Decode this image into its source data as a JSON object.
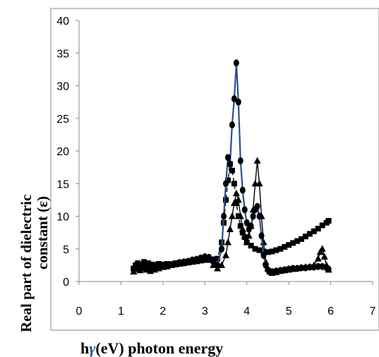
{
  "chart_data": {
    "type": "scatter",
    "title": "",
    "xlabel_prefix": "h",
    "xlabel_symbol": "γ",
    "xlabel_suffix": "(eV) photon energy",
    "ylabel_line1": "Real    part   of dielectric",
    "ylabel_line2": "constant (ε)",
    "xlim": [
      0,
      7
    ],
    "ylim": [
      0,
      40
    ],
    "x_ticks": [
      0,
      1,
      2,
      3,
      4,
      5,
      6,
      7
    ],
    "y_ticks": [
      0,
      5,
      10,
      15,
      20,
      25,
      30,
      35,
      40
    ],
    "grid": false,
    "legend": "none",
    "series": [
      {
        "marker": "square",
        "color": "#000000",
        "line_style": "dashed",
        "x": [
          1.3,
          1.35,
          1.4,
          1.45,
          1.5,
          1.55,
          1.6,
          1.65,
          1.7,
          1.75,
          1.8,
          1.85,
          1.9,
          1.95,
          2.0,
          2.1,
          2.2,
          2.3,
          2.4,
          2.5,
          2.6,
          2.7,
          2.8,
          2.9,
          3.0,
          3.1,
          3.2,
          3.3,
          3.4,
          3.45,
          3.5,
          3.55,
          3.6,
          3.65,
          3.7,
          3.75,
          3.8,
          3.85,
          3.9,
          3.95,
          4.0,
          4.1,
          4.2,
          4.3,
          4.4,
          4.5,
          4.6,
          4.7,
          4.8,
          4.9,
          5.0,
          5.1,
          5.2,
          5.3,
          5.4,
          5.5,
          5.6,
          5.7,
          5.8,
          5.9,
          5.95
        ],
        "y": [
          2.0,
          2.5,
          2.8,
          2.2,
          2.6,
          3.0,
          2.4,
          2.8,
          2.2,
          2.6,
          2.3,
          2.5,
          2.7,
          2.4,
          2.6,
          2.7,
          2.6,
          2.8,
          2.9,
          2.8,
          3.0,
          3.1,
          3.2,
          3.3,
          3.3,
          3.3,
          3.4,
          3.5,
          6.0,
          9.0,
          12.5,
          15.5,
          18.0,
          17.0,
          15.0,
          12.0,
          10.0,
          8.5,
          7.5,
          6.8,
          6.0,
          5.5,
          5.0,
          4.8,
          4.6,
          4.5,
          4.6,
          4.8,
          5.0,
          5.3,
          5.6,
          5.9,
          6.2,
          6.5,
          6.9,
          7.3,
          7.7,
          8.1,
          8.6,
          9.0,
          9.3
        ]
      },
      {
        "marker": "triangle",
        "color": "#000000",
        "line_style": "solid",
        "x": [
          1.3,
          1.35,
          1.4,
          1.45,
          1.5,
          1.55,
          1.6,
          1.65,
          1.7,
          1.75,
          1.8,
          1.9,
          2.0,
          2.1,
          2.2,
          2.3,
          2.4,
          2.5,
          2.6,
          2.7,
          2.8,
          2.9,
          3.0,
          3.1,
          3.2,
          3.3,
          3.4,
          3.5,
          3.55,
          3.6,
          3.65,
          3.7,
          3.75,
          3.8,
          3.85,
          3.9,
          3.95,
          4.0,
          4.05,
          4.1,
          4.15,
          4.2,
          4.25,
          4.3,
          4.35,
          4.4,
          4.45,
          4.5,
          4.55,
          4.6,
          4.7,
          4.8,
          4.9,
          5.0,
          5.1,
          5.2,
          5.3,
          5.4,
          5.5,
          5.6,
          5.7,
          5.75,
          5.8,
          5.85,
          5.9,
          5.95
        ],
        "y": [
          1.5,
          1.9,
          2.5,
          1.7,
          2.0,
          2.6,
          1.8,
          2.3,
          1.6,
          2.1,
          1.8,
          2.0,
          2.2,
          2.3,
          2.5,
          2.6,
          2.7,
          2.8,
          2.9,
          3.0,
          3.1,
          3.2,
          3.4,
          3.3,
          2.5,
          2.0,
          2.5,
          4.0,
          6.0,
          8.0,
          10.0,
          12.0,
          13.5,
          12.5,
          10.0,
          8.0,
          7.0,
          6.0,
          7.0,
          8.5,
          11.0,
          15.0,
          18.5,
          15.0,
          10.0,
          6.0,
          3.0,
          2.0,
          1.5,
          1.3,
          1.4,
          1.6,
          1.7,
          1.8,
          1.9,
          2.0,
          2.1,
          2.2,
          2.2,
          2.5,
          3.5,
          4.5,
          5.0,
          3.8,
          2.5,
          1.8
        ]
      },
      {
        "marker": "circle",
        "color": "#000000",
        "line_color": "#2a4f8e",
        "line_style": "solid",
        "x": [
          1.3,
          1.35,
          1.4,
          1.45,
          1.5,
          1.55,
          1.6,
          1.65,
          1.7,
          1.75,
          1.8,
          1.9,
          2.0,
          2.1,
          2.2,
          2.3,
          2.4,
          2.5,
          2.6,
          2.7,
          2.8,
          2.9,
          3.0,
          3.1,
          3.2,
          3.3,
          3.4,
          3.45,
          3.5,
          3.55,
          3.6,
          3.65,
          3.7,
          3.75,
          3.8,
          3.85,
          3.9,
          3.95,
          4.0,
          4.05,
          4.1,
          4.15,
          4.2,
          4.25,
          4.3,
          4.35,
          4.4,
          4.45,
          4.5,
          4.55,
          4.6,
          4.7,
          4.8,
          4.9,
          5.0,
          5.1,
          5.2,
          5.3,
          5.4,
          5.5,
          5.6,
          5.7,
          5.8,
          5.9,
          5.95
        ],
        "y": [
          1.8,
          2.2,
          2.6,
          2.0,
          2.4,
          2.8,
          2.0,
          2.5,
          1.9,
          2.3,
          2.0,
          2.2,
          2.4,
          2.5,
          2.6,
          2.7,
          2.9,
          3.0,
          3.1,
          3.3,
          3.4,
          3.6,
          3.8,
          3.7,
          3.0,
          2.5,
          5.0,
          10.0,
          15.0,
          19.0,
          18.0,
          24.0,
          28.0,
          33.5,
          27.5,
          18.5,
          14.0,
          11.0,
          9.0,
          8.0,
          8.5,
          10.0,
          11.0,
          11.5,
          10.0,
          7.0,
          4.0,
          2.5,
          1.8,
          1.5,
          1.5,
          1.6,
          1.7,
          1.8,
          1.9,
          2.0,
          2.0,
          2.1,
          2.1,
          2.2,
          2.2,
          2.3,
          2.3,
          2.1,
          1.9
        ]
      }
    ]
  }
}
